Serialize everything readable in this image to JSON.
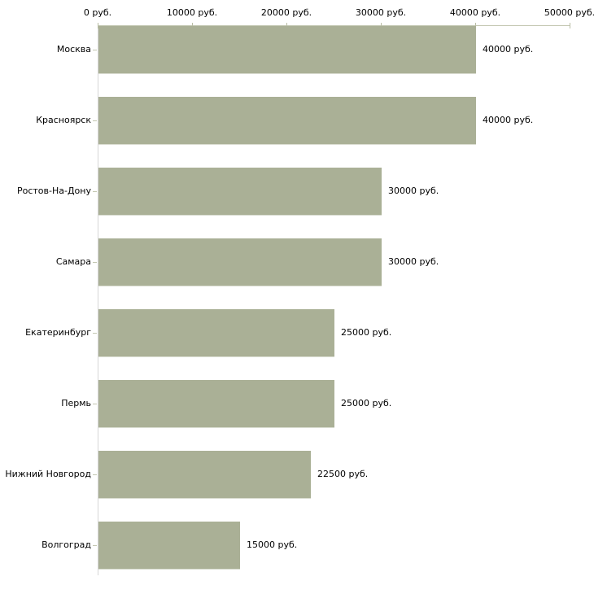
{
  "colors": {
    "background": "#ffffff",
    "bar_fill": "#aab096",
    "bar_bottom_highlight": "#d9dcd0",
    "axis_line": "#c3c7b1",
    "tick_mark": "#b9bda5",
    "left_axis_line": "#d6d6d6",
    "category_tick": "#c3c7b1",
    "text": "#000000"
  },
  "chart_data": {
    "type": "bar",
    "orientation": "horizontal",
    "unit": "руб.",
    "categories": [
      "Москва",
      "Красноярск",
      "Ростов-На-Дону",
      "Самара",
      "Екатеринбург",
      "Пермь",
      "Нижний Новгород",
      "Волгоград"
    ],
    "values": [
      40000,
      40000,
      30000,
      30000,
      25000,
      25000,
      22500,
      15000
    ],
    "value_labels": [
      "40000 руб.",
      "40000 руб.",
      "30000 руб.",
      "30000 руб.",
      "25000 руб.",
      "25000 руб.",
      "22500 руб.",
      "15000 руб."
    ],
    "x_axis": {
      "position": "top",
      "range": [
        0,
        50000
      ],
      "ticks": [
        0,
        10000,
        20000,
        30000,
        40000,
        50000
      ],
      "tick_labels": [
        "0 руб.",
        "10000 руб.",
        "20000 руб.",
        "30000 руб.",
        "40000 руб.",
        "50000 руб."
      ]
    },
    "grid": false,
    "legend": "none"
  }
}
